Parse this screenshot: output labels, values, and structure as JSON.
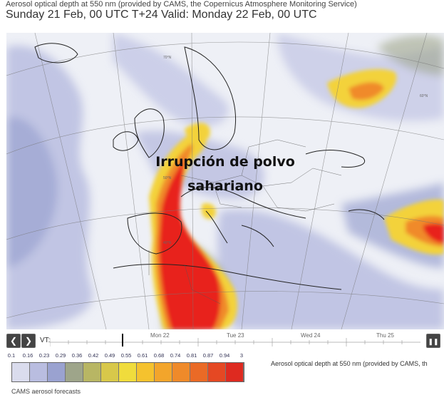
{
  "header": {
    "subtitle": "Aerosol optical depth at 550 nm (provided by CAMS, the Copernicus Atmosphere Monitoring Service)",
    "title": "Sunday 21 Feb, 00 UTC T+24 Valid: Monday 22 Feb, 00 UTC"
  },
  "map": {
    "annotation_line1": "Irrupción de polvo",
    "annotation_line2": "sahariano",
    "lat_labels": [
      "70°N",
      "60°N",
      "50°N",
      "40°N"
    ]
  },
  "controls": {
    "prev_icon": "chevron-left-icon",
    "next_icon": "chevron-right-icon",
    "prev_glyph": "❮",
    "next_glyph": "❯",
    "pause_icon": "pause-icon",
    "pause_glyph": "❚❚",
    "vt_label": "VT:"
  },
  "timeline": {
    "days": [
      "Mon 22",
      "Tue 23",
      "Wed 24",
      "Thu 25"
    ]
  },
  "legend": {
    "values": [
      "0.1",
      "0.16",
      "0.23",
      "0.29",
      "0.36",
      "0.42",
      "0.49",
      "0.55",
      "0.61",
      "0.68",
      "0.74",
      "0.81",
      "0.87",
      "0.94",
      "3"
    ],
    "colors": [
      "#dadced",
      "#b9bde0",
      "#9aa2d0",
      "#9ea58a",
      "#b8b664",
      "#d8c84a",
      "#f0dc3c",
      "#f5c22e",
      "#f3a52b",
      "#ef8a2a",
      "#ea6a26",
      "#e54823",
      "#de2a20"
    ],
    "description": "Aerosol optical depth at 550 nm (provided by CAMS, th"
  },
  "footer": {
    "text": "CAMS aerosol forecasts"
  },
  "colors": {
    "low": "#c9cde8",
    "mid": "#9aa2d0",
    "yellow": "#f3d23a",
    "orange": "#f08a2a",
    "red": "#e8231e",
    "land": "#f4f4f6",
    "border": "#222222"
  }
}
